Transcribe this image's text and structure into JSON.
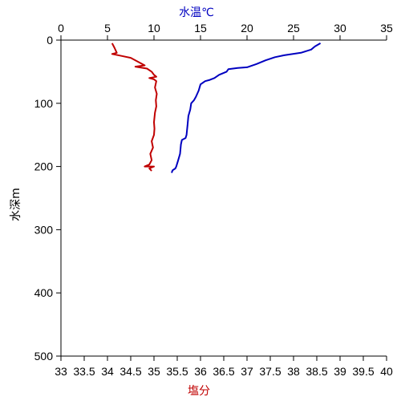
{
  "chart_data": {
    "type": "line",
    "y_axis": {
      "label": "水深m",
      "range": [
        0,
        500
      ],
      "ticks": [
        0,
        100,
        200,
        300,
        400,
        500
      ],
      "inverted": true
    },
    "x_axis_top": {
      "label": "水温℃",
      "range": [
        0,
        35
      ],
      "ticks": [
        0,
        5,
        10,
        15,
        20,
        25,
        30,
        35
      ],
      "color": "#0000c0"
    },
    "x_axis_bottom": {
      "label": "塩分",
      "range": [
        33,
        40
      ],
      "ticks": [
        "33",
        "33.5",
        "34",
        "34.5",
        "35",
        "35.5",
        "36",
        "36.5",
        "37",
        "37.5",
        "38",
        "38.5",
        "39",
        "39.5",
        "40"
      ],
      "color": "#c00000"
    },
    "grid": false,
    "series": [
      {
        "axis": "top",
        "color": "#0000c0",
        "points": [
          [
            27.9,
            5
          ],
          [
            27.3,
            10
          ],
          [
            26.9,
            15
          ],
          [
            25.8,
            20
          ],
          [
            24.0,
            24
          ],
          [
            23.0,
            27
          ],
          [
            22.0,
            32
          ],
          [
            21.0,
            38
          ],
          [
            20.0,
            43
          ],
          [
            19.0,
            44
          ],
          [
            18.0,
            46
          ],
          [
            17.8,
            50
          ],
          [
            17.0,
            55
          ],
          [
            16.5,
            60
          ],
          [
            16.0,
            63
          ],
          [
            15.5,
            65
          ],
          [
            15.0,
            70
          ],
          [
            14.8,
            80
          ],
          [
            14.5,
            90
          ],
          [
            14.3,
            95
          ],
          [
            14.0,
            100
          ],
          [
            13.9,
            110
          ],
          [
            13.7,
            120
          ],
          [
            13.6,
            135
          ],
          [
            13.5,
            150
          ],
          [
            13.4,
            155
          ],
          [
            13.0,
            158
          ],
          [
            12.9,
            165
          ],
          [
            12.8,
            180
          ],
          [
            12.6,
            190
          ],
          [
            12.4,
            200
          ],
          [
            12.3,
            203
          ],
          [
            12.0,
            206
          ],
          [
            11.9,
            210
          ]
        ]
      },
      {
        "axis": "bottom",
        "color": "#c00000",
        "points": [
          [
            34.1,
            5
          ],
          [
            34.15,
            12
          ],
          [
            34.2,
            20
          ],
          [
            34.1,
            22
          ],
          [
            34.3,
            25
          ],
          [
            34.5,
            28
          ],
          [
            34.6,
            32
          ],
          [
            34.7,
            36
          ],
          [
            34.8,
            40
          ],
          [
            34.6,
            42
          ],
          [
            34.85,
            45
          ],
          [
            34.95,
            50
          ],
          [
            35.0,
            55
          ],
          [
            35.05,
            58
          ],
          [
            34.9,
            60
          ],
          [
            35.0,
            62
          ],
          [
            35.05,
            65
          ],
          [
            35.02,
            75
          ],
          [
            35.06,
            85
          ],
          [
            35.04,
            95
          ],
          [
            35.05,
            105
          ],
          [
            35.02,
            115
          ],
          [
            35.0,
            130
          ],
          [
            35.01,
            140
          ],
          [
            35.0,
            150
          ],
          [
            34.95,
            160
          ],
          [
            34.98,
            170
          ],
          [
            34.92,
            180
          ],
          [
            34.95,
            190
          ],
          [
            34.9,
            197
          ],
          [
            34.8,
            200
          ],
          [
            35.0,
            200
          ],
          [
            34.9,
            203
          ],
          [
            34.95,
            207
          ]
        ]
      }
    ]
  }
}
